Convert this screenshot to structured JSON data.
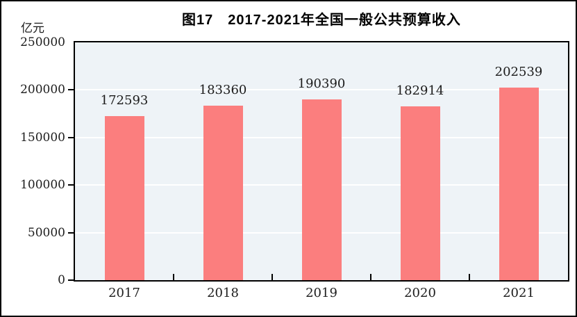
{
  "figure": {
    "outer_border_color": "#000000",
    "background_color": "#ffffff"
  },
  "chart_data": {
    "type": "bar",
    "title": "图17　2017-2021年全国一般公共预算收入",
    "unit_label": "亿元",
    "categories": [
      "2017",
      "2018",
      "2019",
      "2020",
      "2021"
    ],
    "values": [
      172593,
      183360,
      190390,
      182914,
      202539
    ],
    "value_labels": [
      "172593",
      "183360",
      "190390",
      "182914",
      "202539"
    ],
    "xlabel": "",
    "ylabel": "亿元",
    "ylim": [
      0,
      250000
    ],
    "yticks": [
      0,
      50000,
      100000,
      150000,
      200000,
      250000
    ],
    "ytick_labels": [
      "0",
      "50000",
      "100000",
      "150000",
      "200000",
      "250000"
    ],
    "grid": true,
    "legend_position": "none",
    "bar_color": "#FB7E7E",
    "plot_background_color": "#EEF3F7",
    "gridline_color": "#FFFFFF",
    "axis_color": "#000000"
  }
}
